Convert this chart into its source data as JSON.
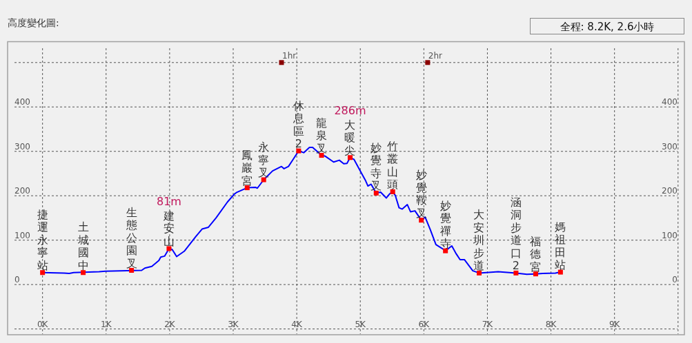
{
  "chart_data": {
    "type": "line",
    "title": "高度變化圖:",
    "xlim": [
      -0.55,
      10.1
    ],
    "ylim": [
      -113,
      547
    ],
    "y2lim": [
      -113,
      547
    ],
    "xticks": [
      {
        "value": 0,
        "label": "0K"
      },
      {
        "value": 1,
        "label": "1K"
      },
      {
        "value": 2,
        "label": "2K"
      },
      {
        "value": 3,
        "label": "3K"
      },
      {
        "value": 4,
        "label": "4K"
      },
      {
        "value": 5,
        "label": "5K"
      },
      {
        "value": 6,
        "label": "6K"
      },
      {
        "value": 7,
        "label": "7K"
      },
      {
        "value": 8,
        "label": "8K"
      },
      {
        "value": 9,
        "label": "9K"
      },
      {
        "value": 10,
        "label": null
      }
    ],
    "yticks": [
      {
        "value": -100,
        "label": null
      },
      0,
      100,
      200,
      300,
      400,
      {
        "value": 500,
        "label": null
      }
    ],
    "y2ticks": [
      0,
      100,
      200,
      300,
      400
    ],
    "grid": true,
    "series": [
      {
        "type": "line",
        "color": "#0000ff",
        "x": [
          0,
          0.34,
          0.42,
          0.49,
          0.89,
          0.99,
          1.56,
          1.61,
          1.72,
          1.83,
          1.86,
          1.92,
          1.99,
          2.04,
          2.11,
          2.23,
          2.41,
          2.51,
          2.61,
          2.73,
          2.91,
          3.02,
          3.06,
          3.22,
          3.35,
          3.38,
          3.48,
          3.62,
          3.76,
          3.8,
          3.87,
          3.93,
          4.03,
          4.11,
          4.2,
          4.25,
          4.39,
          4.45,
          4.58,
          4.67,
          4.74,
          4.79,
          4.84,
          4.9,
          5.01,
          5.08,
          5.12,
          5.17,
          5.25,
          5.32,
          5.41,
          5.46,
          5.51,
          5.55,
          5.61,
          5.66,
          5.74,
          5.79,
          5.86,
          5.96,
          6.02,
          6.1,
          6.19,
          6.28,
          6.34,
          6.44,
          6.51,
          6.57,
          6.64,
          6.77,
          6.87,
          7.17,
          7.45,
          7.62,
          7.76,
          7.87,
          8.07,
          8.15
        ],
        "values": [
          27,
          26,
          25,
          27,
          29,
          30,
          32,
          37,
          41,
          54,
          62,
          64,
          81,
          79,
          63,
          75,
          108,
          125,
          129,
          150,
          186,
          204,
          208,
          218,
          219,
          217,
          236,
          256,
          266,
          261,
          266,
          279,
          301,
          297,
          309,
          309,
          291,
          289,
          276,
          280,
          272,
          273,
          286,
          282,
          253,
          235,
          222,
          226,
          206,
          208,
          195,
          204,
          209,
          201,
          173,
          170,
          180,
          164,
          166,
          145,
          152,
          124,
          90,
          82,
          76,
          87,
          69,
          56,
          56,
          31,
          26,
          29,
          26,
          23,
          24,
          25,
          26,
          28
        ]
      },
      {
        "type": "scatter",
        "color": "#ff0000",
        "marker": "square",
        "x": [
          0,
          0.64,
          1.4,
          1.99,
          3.22,
          3.48,
          4.03,
          4.39,
          4.84,
          5.25,
          5.51,
          5.96,
          6.34,
          6.87,
          7.45,
          7.76,
          8.15
        ],
        "values": [
          27,
          27,
          32,
          81,
          218,
          236,
          301,
          291,
          286,
          206,
          209,
          145,
          76,
          26,
          26,
          24,
          28
        ],
        "value_labels": [
          "捷運永寧站",
          "土城國中",
          "生態公園叉",
          "建安山",
          "鳳巖宮",
          "永寧叉",
          "休息區2",
          "龍泉叉",
          "大暖尖",
          "妙覺寺叉",
          "竹叢山頭",
          "妙覺鞍叉",
          "妙覺禪寺",
          "大安圳步道",
          "涵洞步道口2",
          "福德宮",
          "媽祖田站"
        ]
      },
      {
        "type": "scatter",
        "color": "#8b0000",
        "marker": "square",
        "x": [
          3.76,
          6.06
        ],
        "values": [
          500,
          500
        ]
      }
    ],
    "annotations": [
      "81m",
      "286m",
      "1hr",
      "2hr",
      "全程: 8.2K, 2.6小時"
    ]
  }
}
